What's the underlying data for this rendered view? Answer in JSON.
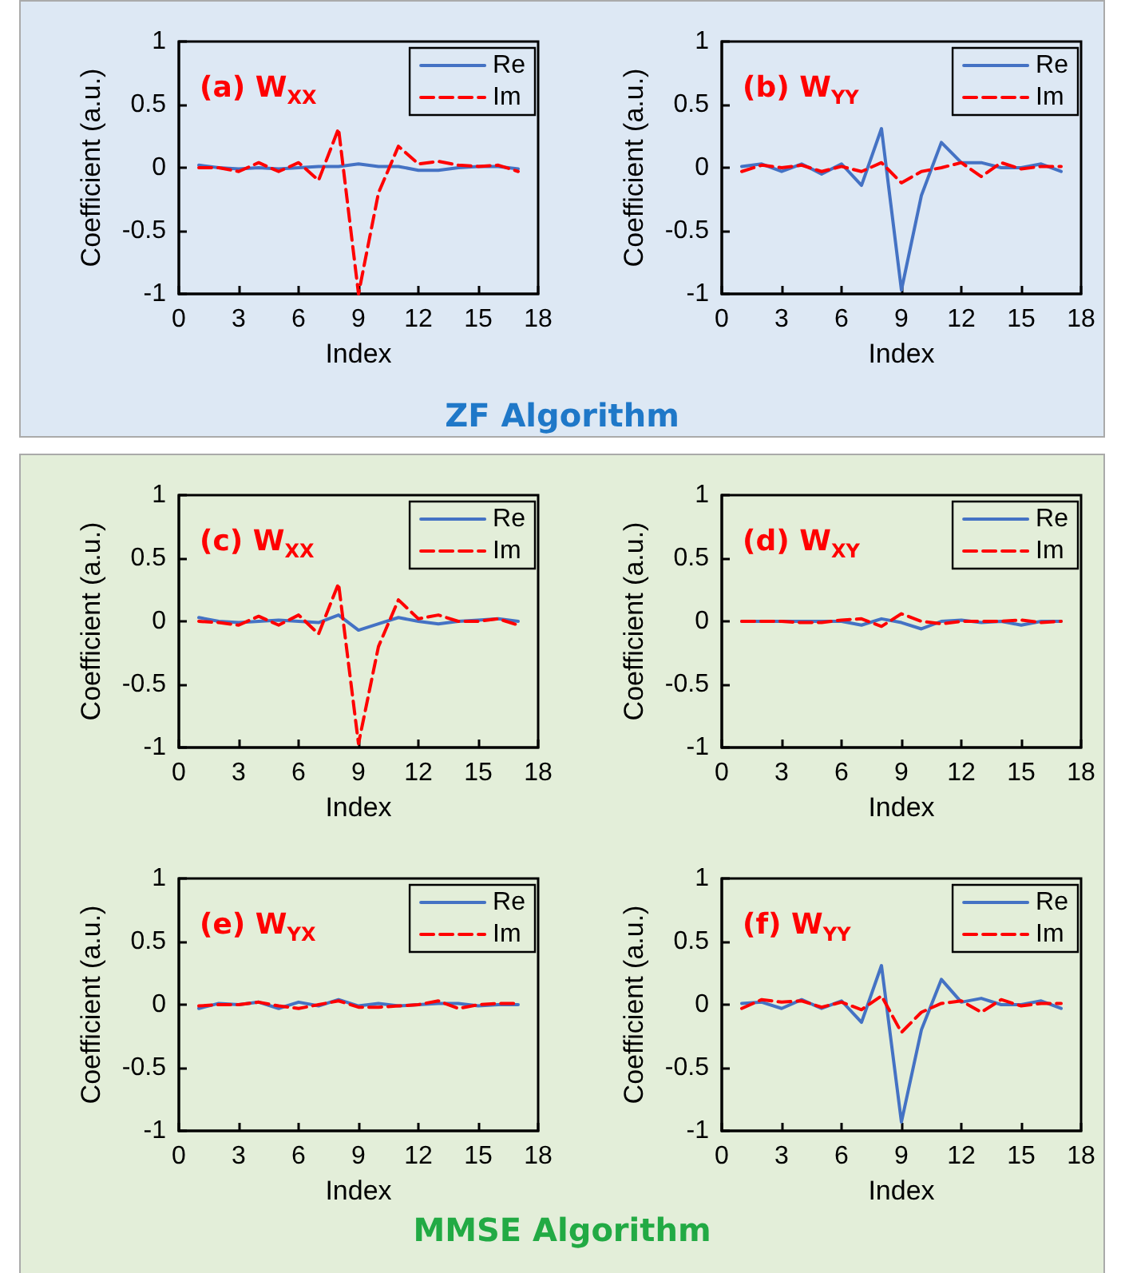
{
  "chart_data": [
    {
      "type": "line",
      "title": "(a) W$_{XX}$",
      "xlabel": "Index",
      "ylabel": "Coefficient (a.u.)",
      "x": [
        1,
        2,
        3,
        4,
        5,
        6,
        7,
        8,
        9,
        10,
        11,
        12,
        13,
        14,
        15,
        16,
        17
      ],
      "xlim": [
        0,
        18
      ],
      "xticks": [
        0,
        3,
        6,
        9,
        12,
        15,
        18
      ],
      "ylim": [
        -1,
        1
      ],
      "yticks": [
        -1,
        -0.5,
        0,
        0.5,
        1
      ],
      "grid": false,
      "legend": "top right",
      "marker": "none",
      "annotations": [
        "ZF Algorithm"
      ],
      "series": [
        {
          "name": "Re",
          "color": "#4472c4",
          "line_style": "solid",
          "values": [
            0.02,
            0,
            -0.01,
            0,
            -0.01,
            0,
            0.01,
            0.01,
            0.03,
            0.01,
            0.01,
            -0.02,
            -0.02,
            0,
            0.01,
            0.01,
            -0.01
          ]
        },
        {
          "name": "Im",
          "color": "#ff0000",
          "line_style": "dashed",
          "values": [
            0,
            0,
            -0.03,
            0.04,
            -0.03,
            0.04,
            -0.1,
            0.31,
            -1,
            -0.2,
            0.17,
            0.03,
            0.05,
            0.02,
            0.01,
            0.02,
            -0.03
          ]
        }
      ]
    },
    {
      "type": "line",
      "title": "(b) W$_{YY}$",
      "xlabel": "Index",
      "ylabel": "Coefficient (a.u.)",
      "x": [
        1,
        2,
        3,
        4,
        5,
        6,
        7,
        8,
        9,
        10,
        11,
        12,
        13,
        14,
        15,
        16,
        17
      ],
      "xlim": [
        0,
        18
      ],
      "xticks": [
        0,
        3,
        6,
        9,
        12,
        15,
        18
      ],
      "ylim": [
        -1,
        1
      ],
      "yticks": [
        -1,
        -0.5,
        0,
        0.5,
        1
      ],
      "grid": false,
      "legend": "top right",
      "marker": "none",
      "series": [
        {
          "name": "Re",
          "color": "#4472c4",
          "line_style": "solid",
          "values": [
            0.01,
            0.03,
            -0.03,
            0.03,
            -0.05,
            0.03,
            -0.14,
            0.31,
            -0.97,
            -0.22,
            0.2,
            0.04,
            0.04,
            0,
            0,
            0.03,
            -0.03
          ]
        },
        {
          "name": "Im",
          "color": "#ff0000",
          "line_style": "dashed",
          "values": [
            -0.03,
            0.02,
            0,
            0.02,
            -0.03,
            0.01,
            -0.03,
            0.04,
            -0.12,
            -0.03,
            0,
            0.04,
            -0.07,
            0.04,
            -0.01,
            0.01,
            0.01
          ]
        }
      ]
    },
    {
      "type": "line",
      "title": "(c) W$_{XX}$",
      "xlabel": "Index",
      "ylabel": "Coefficient (a.u.)",
      "x": [
        1,
        2,
        3,
        4,
        5,
        6,
        7,
        8,
        9,
        10,
        11,
        12,
        13,
        14,
        15,
        16,
        17
      ],
      "xlim": [
        0,
        18
      ],
      "xticks": [
        0,
        3,
        6,
        9,
        12,
        15,
        18
      ],
      "ylim": [
        -1,
        1
      ],
      "yticks": [
        -1,
        -0.5,
        0,
        0.5,
        1
      ],
      "grid": false,
      "legend": "top right",
      "marker": "none",
      "series": [
        {
          "name": "Re",
          "color": "#4472c4",
          "line_style": "solid",
          "values": [
            0.03,
            0,
            -0.01,
            0,
            0.01,
            0,
            -0.01,
            0.05,
            -0.07,
            -0.02,
            0.03,
            0,
            -0.02,
            0,
            0.01,
            0.02,
            0
          ]
        },
        {
          "name": "Im",
          "color": "#ff0000",
          "line_style": "dashed",
          "values": [
            0,
            -0.01,
            -0.03,
            0.04,
            -0.03,
            0.05,
            -0.1,
            0.3,
            -0.97,
            -0.2,
            0.17,
            0.02,
            0.05,
            0,
            0,
            0.02,
            -0.03
          ]
        }
      ]
    },
    {
      "type": "line",
      "title": "(d) W$_{XY}$",
      "xlabel": "Index",
      "ylabel": "Coefficient (a.u.)",
      "x": [
        1,
        2,
        3,
        4,
        5,
        6,
        7,
        8,
        9,
        10,
        11,
        12,
        13,
        14,
        15,
        16,
        17
      ],
      "xlim": [
        0,
        18
      ],
      "xticks": [
        0,
        3,
        6,
        9,
        12,
        15,
        18
      ],
      "ylim": [
        -1,
        1
      ],
      "yticks": [
        -1,
        -0.5,
        0,
        0.5,
        1
      ],
      "grid": false,
      "legend": "top right",
      "marker": "none",
      "series": [
        {
          "name": "Re",
          "color": "#4472c4",
          "line_style": "solid",
          "values": [
            0,
            0,
            0,
            0,
            0,
            0,
            -0.03,
            0.02,
            -0.01,
            -0.06,
            0,
            0.01,
            -0.01,
            0,
            -0.03,
            0,
            0
          ]
        },
        {
          "name": "Im",
          "color": "#ff0000",
          "line_style": "dashed",
          "values": [
            0,
            0,
            0,
            -0.01,
            -0.01,
            0.01,
            0.02,
            -0.04,
            0.06,
            0,
            -0.02,
            0,
            0,
            0,
            0.01,
            -0.01,
            0
          ]
        }
      ]
    },
    {
      "type": "line",
      "title": "(e) W$_{YX}$",
      "xlabel": "Index",
      "ylabel": "Coefficient (a.u.)",
      "x": [
        1,
        2,
        3,
        4,
        5,
        6,
        7,
        8,
        9,
        10,
        11,
        12,
        13,
        14,
        15,
        16,
        17
      ],
      "xlim": [
        0,
        18
      ],
      "xticks": [
        0,
        3,
        6,
        9,
        12,
        15,
        18
      ],
      "ylim": [
        -1,
        1
      ],
      "yticks": [
        -1,
        -0.5,
        0,
        0.5,
        1
      ],
      "grid": false,
      "legend": "top right",
      "marker": "none",
      "annotations": [
        "MMSE Algorithm"
      ],
      "series": [
        {
          "name": "Re",
          "color": "#4472c4",
          "line_style": "solid",
          "values": [
            -0.03,
            0.01,
            0,
            0.02,
            -0.03,
            0.02,
            -0.01,
            0.04,
            -0.01,
            0.01,
            -0.01,
            0,
            0.01,
            0.01,
            -0.01,
            0,
            0
          ]
        },
        {
          "name": "Im",
          "color": "#ff0000",
          "line_style": "dashed",
          "values": [
            -0.01,
            0,
            0,
            0.02,
            -0.01,
            -0.03,
            0,
            0.03,
            -0.02,
            -0.02,
            -0.01,
            0,
            0.03,
            -0.03,
            0,
            0.01,
            0.01
          ]
        }
      ]
    },
    {
      "type": "line",
      "title": "(f) W$_{YY}$",
      "xlabel": "Index",
      "ylabel": "Coefficient (a.u.)",
      "x": [
        1,
        2,
        3,
        4,
        5,
        6,
        7,
        8,
        9,
        10,
        11,
        12,
        13,
        14,
        15,
        16,
        17
      ],
      "xlim": [
        0,
        18
      ],
      "xticks": [
        0,
        3,
        6,
        9,
        12,
        15,
        18
      ],
      "ylim": [
        -1,
        1
      ],
      "yticks": [
        -1,
        -0.5,
        0,
        0.5,
        1
      ],
      "grid": false,
      "legend": "top right",
      "marker": "none",
      "series": [
        {
          "name": "Re",
          "color": "#4472c4",
          "line_style": "solid",
          "values": [
            0.01,
            0.02,
            -0.03,
            0.04,
            -0.03,
            0.03,
            -0.14,
            0.31,
            -0.93,
            -0.2,
            0.2,
            0.02,
            0.05,
            0,
            0,
            0.03,
            -0.03
          ]
        },
        {
          "name": "Im",
          "color": "#ff0000",
          "line_style": "dashed",
          "values": [
            -0.03,
            0.04,
            0.02,
            0.03,
            -0.02,
            0.02,
            -0.04,
            0.07,
            -0.22,
            -0.06,
            0.01,
            0.03,
            -0.06,
            0.04,
            -0.01,
            0.01,
            0.01
          ]
        }
      ]
    }
  ]
}
